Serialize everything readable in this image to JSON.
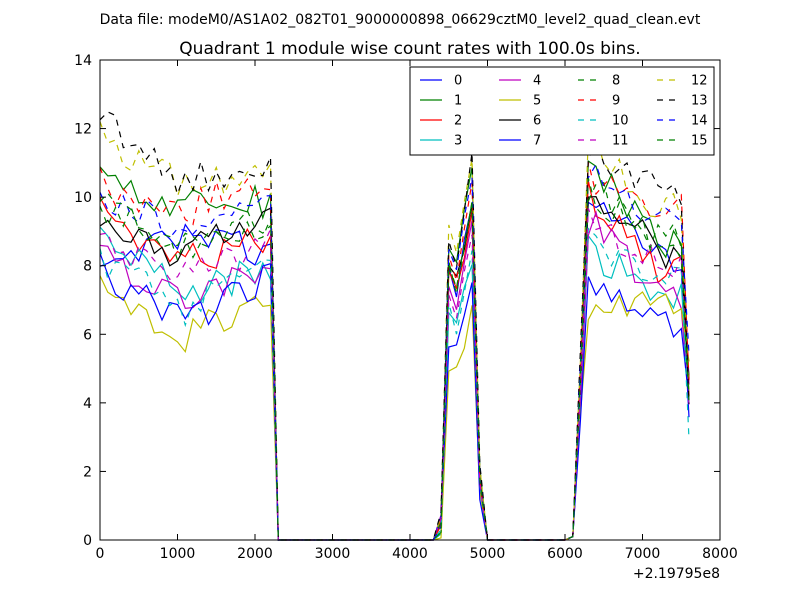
{
  "chart_data": {
    "type": "line",
    "suptitle": "Data file: modeM0/AS1A02_082T01_9000000898_06629cztM0_level2_quad_clean.evt",
    "title": "Quadrant 1 module wise count rates with 100.0s bins.",
    "xlabel": "",
    "ylabel": "",
    "x_offset_label": "+2.19795e8",
    "xlim": [
      0,
      8000
    ],
    "ylim": [
      0,
      14
    ],
    "x_ticks": [
      "0",
      "1000",
      "2000",
      "3000",
      "4000",
      "5000",
      "6000",
      "7000",
      "8000"
    ],
    "y_ticks": [
      "0",
      "2",
      "4",
      "6",
      "8",
      "10",
      "12",
      "14"
    ],
    "grid": false,
    "legend_position": "top-right",
    "bin_width": 100,
    "series": [
      {
        "name": "0",
        "color": "#0000ff",
        "dashed": false,
        "base": [
          7.9,
          8.8,
          8.4,
          8.1,
          10.2
        ]
      },
      {
        "name": "1",
        "color": "#008000",
        "dashed": false,
        "base": [
          10.6,
          9.8,
          9.9,
          8.6,
          11.1
        ]
      },
      {
        "name": "2",
        "color": "#ff0000",
        "dashed": false,
        "base": [
          9.4,
          8.1,
          8.9,
          7.9,
          10.0
        ]
      },
      {
        "name": "3",
        "color": "#00bfbf",
        "dashed": false,
        "base": [
          8.7,
          7.3,
          7.9,
          7.1,
          8.4
        ]
      },
      {
        "name": "4",
        "color": "#bf00bf",
        "dashed": false,
        "base": [
          8.3,
          7.1,
          8.1,
          7.2,
          9.3
        ]
      },
      {
        "name": "5",
        "color": "#bfbf00",
        "dashed": false,
        "base": [
          7.1,
          5.9,
          7.3,
          6.8,
          6.7
        ]
      },
      {
        "name": "6",
        "color": "#000000",
        "dashed": false,
        "base": [
          8.9,
          8.4,
          9.3,
          8.4,
          10.3
        ]
      },
      {
        "name": "7",
        "color": "#0000ff",
        "dashed": false,
        "base": [
          7.6,
          6.4,
          7.7,
          6.4,
          7.6
        ]
      },
      {
        "name": "8",
        "color": "#008000",
        "dashed": true,
        "base": [
          9.6,
          8.6,
          9.5,
          8.6,
          10.3
        ]
      },
      {
        "name": "9",
        "color": "#ff0000",
        "dashed": true,
        "base": [
          10.3,
          9.6,
          10.7,
          9.6,
          10.6
        ]
      },
      {
        "name": "10",
        "color": "#00bfbf",
        "dashed": true,
        "base": [
          8.2,
          6.7,
          8.6,
          7.9,
          8.6
        ]
      },
      {
        "name": "11",
        "color": "#bf00bf",
        "dashed": true,
        "base": [
          8.6,
          7.8,
          8.6,
          8.0,
          9.3
        ]
      },
      {
        "name": "12",
        "color": "#bfbf00",
        "dashed": true,
        "base": [
          11.6,
          10.3,
          10.8,
          9.6,
          11.6
        ]
      },
      {
        "name": "13",
        "color": "#000000",
        "dashed": true,
        "base": [
          12.3,
          10.4,
          11.2,
          10.2,
          11.4
        ]
      },
      {
        "name": "14",
        "color": "#0000ff",
        "dashed": true,
        "base": [
          10.1,
          9.1,
          9.8,
          9.4,
          10.9
        ]
      },
      {
        "name": "15",
        "color": "#008000",
        "dashed": true,
        "base": [
          9.9,
          8.5,
          9.1,
          8.8,
          10.2
        ]
      }
    ],
    "segments": [
      {
        "start": 0,
        "end": 2200,
        "drop_to": 0
      },
      {
        "start": 4400,
        "end": 4900,
        "drop_to": 0
      },
      {
        "start": 6100,
        "end": 7600,
        "drop_to": 3.5
      }
    ],
    "gap_value": 0
  }
}
